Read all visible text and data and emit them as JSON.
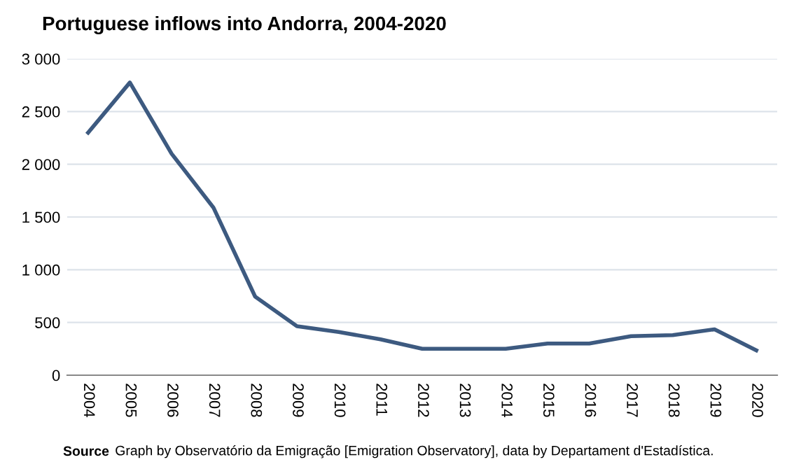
{
  "chart_data": {
    "type": "line",
    "title": "Portuguese inflows into Andorra, 2004-2020",
    "categories": [
      "2004",
      "2005",
      "2006",
      "2007",
      "2008",
      "2009",
      "2010",
      "2011",
      "2012",
      "2013",
      "2014",
      "2015",
      "2016",
      "2017",
      "2018",
      "2019",
      "2020"
    ],
    "series": [
      {
        "color": "#3d5a80",
        "values": [
          2300,
          2775,
          2100,
          1590,
          745,
          465,
          410,
          340,
          250,
          250,
          250,
          300,
          300,
          370,
          380,
          435,
          235
        ]
      }
    ],
    "ylim": [
      0,
      3000
    ],
    "yticks": [
      0,
      500,
      {
        "value": 1000,
        "label": "1 000"
      },
      {
        "value": 1500,
        "label": "1 500"
      },
      {
        "value": 2000,
        "label": "2 000"
      },
      {
        "value": 2500,
        "label": "2 500"
      },
      {
        "value": 3000,
        "label": "3 000"
      }
    ],
    "grid": "y",
    "legend": false,
    "marker": "none",
    "line_style": "solid",
    "annotations": [
      "Source",
      "Graph by Observatório da Emigração [Emigration Observatory], data by Departament d'Estadística."
    ]
  }
}
